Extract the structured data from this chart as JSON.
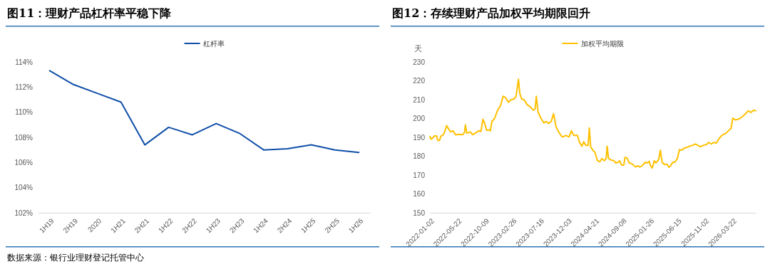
{
  "chart_data": [
    {
      "type": "line",
      "title": "图11：理财产品杠杆率平稳下降",
      "legend": "top",
      "annotations": [
        "数据来源：银行业理财登记托管中心"
      ],
      "categories": [
        "1H19",
        "2H19",
        "2020",
        "1H21",
        "2H21",
        "1H22",
        "2H22",
        "1H23",
        "2H23",
        "1H24",
        "2H24",
        "1H25",
        "2H25",
        "1H26"
      ],
      "ylim": [
        102,
        114
      ],
      "yticks": [
        {
          "value": 102,
          "label": "102%"
        },
        {
          "value": 104,
          "label": "104%"
        },
        {
          "value": 106,
          "label": "106%"
        },
        {
          "value": 108,
          "label": "108%"
        },
        {
          "value": 110,
          "label": "110%"
        },
        {
          "value": 112,
          "label": "112%"
        },
        {
          "value": 114,
          "label": "114%"
        }
      ],
      "series": [
        {
          "name": "杠杆率",
          "color": "#0f4fa8",
          "values": [
            113.3,
            112.2,
            111.5,
            110.8,
            107.4,
            108.8,
            108.2,
            109.1,
            108.3,
            107.0,
            107.1,
            107.4,
            107.0,
            106.8
          ]
        }
      ]
    },
    {
      "type": "line",
      "title": "图12：存续理财产品加权平均期限回升",
      "legend": "top",
      "ylabel": "天",
      "xlim": [
        "2022-01-02",
        "2026-07-20"
      ],
      "xticks": [
        "2022-01-02",
        "2022-05-22",
        "2022-10-09",
        "2023-02-26",
        "2023-07-16",
        "2023-12-03",
        "2024-04-21",
        "2024-09-08",
        "2025-01-26",
        "2025-06-15",
        "2025-11-02",
        "2026-03-22"
      ],
      "ylim": [
        150,
        230
      ],
      "yticks": [
        150,
        160,
        170,
        180,
        190,
        200,
        210,
        220,
        230
      ],
      "series": [
        {
          "name": "加权平均期限",
          "color": "#ffc000",
          "x": [
            "2022-01-02",
            "2022-01-08",
            "2022-01-17",
            "2022-01-25",
            "2022-02-05",
            "2022-02-11",
            "2022-02-20",
            "2022-02-27",
            "2022-03-08",
            "2022-03-18",
            "2022-03-28",
            "2022-04-06",
            "2022-04-17",
            "2022-04-30",
            "2022-05-13",
            "2022-05-29",
            "2022-06-17",
            "2022-06-27",
            "2022-07-02",
            "2022-07-09",
            "2022-07-27",
            "2022-08-08",
            "2022-08-25",
            "2022-09-06",
            "2022-09-19",
            "2022-09-29",
            "2022-10-08",
            "2022-10-18",
            "2022-10-27",
            "2022-11-06",
            "2022-11-14",
            "2022-11-27",
            "2022-12-13",
            "2022-12-28",
            "2023-01-10",
            "2023-01-22",
            "2023-02-06",
            "2023-02-19",
            "2023-03-07",
            "2023-03-17",
            "2023-03-29",
            "2023-04-05",
            "2023-04-14",
            "2023-04-27",
            "2023-05-12",
            "2023-05-28",
            "2023-06-13",
            "2023-06-22",
            "2023-06-28",
            "2023-07-07",
            "2023-07-21",
            "2023-08-05",
            "2023-08-18",
            "2023-08-30",
            "2023-09-12",
            "2023-09-24",
            "2023-10-07",
            "2023-10-22",
            "2023-11-07",
            "2023-11-26",
            "2023-12-12",
            "2023-12-24",
            "2024-01-05",
            "2024-01-24",
            "2024-02-03",
            "2024-02-16",
            "2024-02-24",
            "2024-03-06",
            "2024-03-18",
            "2024-03-24",
            "2024-03-31",
            "2024-04-12",
            "2024-04-22",
            "2024-05-05",
            "2024-05-17",
            "2024-05-27",
            "2024-06-08",
            "2024-06-18",
            "2024-06-23",
            "2024-06-30",
            "2024-07-15",
            "2024-07-28",
            "2024-08-06",
            "2024-08-18",
            "2024-08-26",
            "2024-09-04",
            "2024-09-16",
            "2024-09-22",
            "2024-10-02",
            "2024-10-14",
            "2024-10-30",
            "2024-11-14",
            "2024-11-27",
            "2024-12-07",
            "2024-12-19",
            "2025-01-03",
            "2025-01-13",
            "2025-01-23",
            "2025-01-30",
            "2025-02-08",
            "2025-02-18",
            "2025-02-26",
            "2025-03-13",
            "2025-03-21",
            "2025-03-30",
            "2025-04-11",
            "2025-04-24",
            "2025-05-03",
            "2025-05-13",
            "2025-05-23",
            "2025-06-03",
            "2025-06-16",
            "2025-06-26",
            "2025-07-08",
            "2025-07-21",
            "2025-08-05",
            "2025-08-21",
            "2025-09-02",
            "2025-09-15",
            "2025-09-28",
            "2025-10-10",
            "2025-10-27",
            "2025-11-11",
            "2025-11-21",
            "2025-12-06",
            "2025-12-18",
            "2025-12-31",
            "2026-01-13",
            "2026-01-31",
            "2026-02-19",
            "2026-03-10",
            "2026-03-16",
            "2026-03-25",
            "2026-04-08",
            "2026-04-29",
            "2026-05-24",
            "2026-06-12",
            "2026-06-25",
            "2026-07-10",
            "2026-07-20"
          ],
          "values": [
            190.5,
            189.0,
            189.8,
            190.8,
            190.8,
            188.4,
            188.4,
            190.7,
            191.0,
            192.8,
            196.2,
            194.7,
            192.9,
            193.5,
            191.3,
            191.6,
            191.4,
            192.5,
            196.6,
            192.2,
            192.9,
            191.4,
            192.5,
            193.5,
            193.1,
            199.6,
            197.4,
            193.7,
            194.0,
            193.5,
            198.4,
            199.9,
            204.4,
            206.9,
            211.8,
            211.1,
            208.6,
            209.9,
            210.4,
            211.8,
            220.8,
            213.3,
            210.4,
            209.9,
            207.4,
            206.2,
            204.4,
            205.2,
            211.8,
            203.4,
            200.2,
            197.7,
            198.4,
            197.4,
            198.4,
            202.5,
            195.5,
            192.5,
            190.2,
            191.0,
            190.2,
            193.5,
            191.0,
            191.0,
            187.3,
            185.3,
            187.7,
            185.8,
            185.8,
            195.0,
            185.0,
            183.1,
            182.0,
            177.6,
            177.1,
            178.8,
            177.6,
            178.8,
            185.3,
            178.8,
            177.9,
            177.6,
            176.4,
            176.8,
            177.6,
            175.3,
            175.3,
            179.4,
            179.1,
            176.4,
            175.8,
            174.3,
            174.9,
            174.3,
            175.0,
            176.8,
            176.4,
            177.3,
            174.9,
            173.7,
            177.6,
            176.4,
            178.3,
            183.2,
            176.8,
            175.6,
            175.8,
            174.1,
            175.0,
            176.8,
            176.8,
            178.8,
            183.5,
            183.2,
            184.3,
            184.7,
            185.5,
            185.8,
            186.5,
            185.8,
            185.0,
            185.8,
            186.2,
            187.3,
            186.5,
            187.3,
            187.0,
            189.2,
            191.3,
            192.2,
            194.3,
            194.7,
            200.2,
            199.2,
            199.9,
            202.0,
            204.1,
            203.2,
            204.4,
            204.1
          ]
        }
      ]
    }
  ]
}
